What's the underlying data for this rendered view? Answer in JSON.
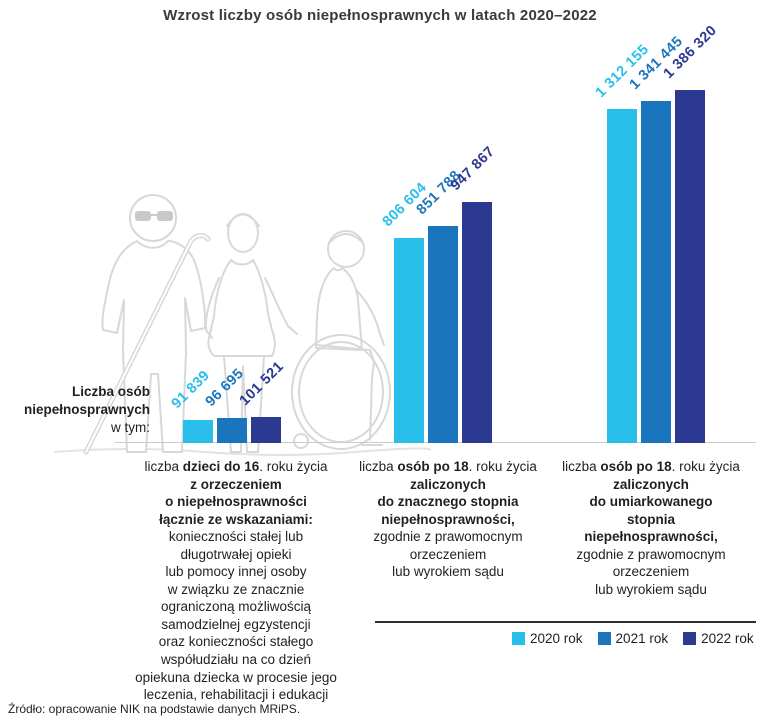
{
  "title": "Wzrost liczby osób niepełnosprawnych w latach 2020–2022",
  "axis_label": {
    "line1": "Liczba osób",
    "line2": "niepełnosprawnych",
    "line3": "w tym:"
  },
  "chart_data": {
    "type": "bar",
    "title": "Wzrost liczby osób niepełnosprawnych w latach 2020–2022",
    "categories": [
      "liczba dzieci do 16. roku życia z orzeczeniem o niepełnosprawności łącznie ze wskazaniami",
      "liczba osób po 18. roku życia zaliczonych do znacznego stopnia niepełnosprawności",
      "liczba osób po 18. roku życia zaliczonych do umiarkowanego stopnia niepełnosprawności"
    ],
    "series": [
      {
        "name": "2020 rok",
        "color": "#29BFEA",
        "values": [
          91839,
          806604,
          1312155
        ],
        "labels": [
          "91 839",
          "806 604",
          "1 312 155"
        ]
      },
      {
        "name": "2021 rok",
        "color": "#1B75BC",
        "values": [
          96695,
          851788,
          1341445
        ],
        "labels": [
          "96 695",
          "851 788",
          "1 341 445"
        ]
      },
      {
        "name": "2022 rok",
        "color": "#2B3990",
        "values": [
          101521,
          947867,
          1386320
        ],
        "labels": [
          "101 521",
          "947 867",
          "1 386 320"
        ]
      }
    ],
    "ylim": [
      0,
      1386320
    ],
    "grid": false,
    "legend_position": "bottom-right",
    "xlabel": "",
    "ylabel": "Liczba osób niepełnosprawnych w tym:"
  },
  "captions": [
    {
      "lines": [
        [
          {
            "t": "liczba ",
            "b": false
          },
          {
            "t": "dzieci do 16",
            "b": true
          },
          {
            "t": ". roku życia",
            "b": false
          }
        ],
        [
          {
            "t": "z orzeczeniem",
            "b": true
          }
        ],
        [
          {
            "t": "o niepełnosprawności",
            "b": true
          }
        ],
        [
          {
            "t": "łącznie ze wskazaniami:",
            "b": true
          }
        ],
        [
          {
            "t": "konieczności stałej lub",
            "b": false
          }
        ],
        [
          {
            "t": "długotrwałej opieki",
            "b": false
          }
        ],
        [
          {
            "t": "lub pomocy innej osoby",
            "b": false
          }
        ],
        [
          {
            "t": "w związku ze znacznie",
            "b": false
          }
        ],
        [
          {
            "t": "ograniczoną możliwością",
            "b": false
          }
        ],
        [
          {
            "t": "samodzielnej egzystencji",
            "b": false
          }
        ],
        [
          {
            "t": "oraz konieczności stałego",
            "b": false
          }
        ],
        [
          {
            "t": "współudziału na co dzień",
            "b": false
          }
        ],
        [
          {
            "t": "opiekuna dziecka w procesie jego",
            "b": false
          }
        ],
        [
          {
            "t": "leczenia, rehabilitacji i edukacji",
            "b": false
          }
        ]
      ]
    },
    {
      "lines": [
        [
          {
            "t": "liczba ",
            "b": false
          },
          {
            "t": "osób po 18",
            "b": true
          },
          {
            "t": ". roku życia",
            "b": false
          }
        ],
        [
          {
            "t": "zaliczonych",
            "b": true
          }
        ],
        [
          {
            "t": "do znacznego stopnia",
            "b": true
          }
        ],
        [
          {
            "t": "niepełnosprawności,",
            "b": true
          }
        ],
        [
          {
            "t": "zgodnie z prawomocnym",
            "b": false
          }
        ],
        [
          {
            "t": "orzeczeniem",
            "b": false
          }
        ],
        [
          {
            "t": "lub wyrokiem sądu",
            "b": false
          }
        ]
      ]
    },
    {
      "lines": [
        [
          {
            "t": "liczba ",
            "b": false
          },
          {
            "t": "osób po 18",
            "b": true
          },
          {
            "t": ". roku życia",
            "b": false
          }
        ],
        [
          {
            "t": "zaliczonych",
            "b": true
          }
        ],
        [
          {
            "t": "do umiarkowanego",
            "b": true
          }
        ],
        [
          {
            "t": "stopnia",
            "b": true
          }
        ],
        [
          {
            "t": "niepełnosprawności,",
            "b": true
          }
        ],
        [
          {
            "t": "zgodnie z prawomocnym",
            "b": false
          }
        ],
        [
          {
            "t": "orzeczeniem",
            "b": false
          }
        ],
        [
          {
            "t": "lub wyrokiem sądu",
            "b": false
          }
        ]
      ]
    }
  ],
  "legend": {
    "items": [
      {
        "label": "2020 rok"
      },
      {
        "label": "2021 rok"
      },
      {
        "label": "2022 rok"
      }
    ]
  },
  "colors": {
    "bar_2020": "#29BFEA",
    "bar_2021": "#1B75BC",
    "bar_2022": "#2B3990",
    "axis_line": "#CBCBCB",
    "illustration": "#D8D8D8",
    "text": "#231F20"
  },
  "source": "Źródło: opracowanie NIK na podstawie danych MRiPS."
}
